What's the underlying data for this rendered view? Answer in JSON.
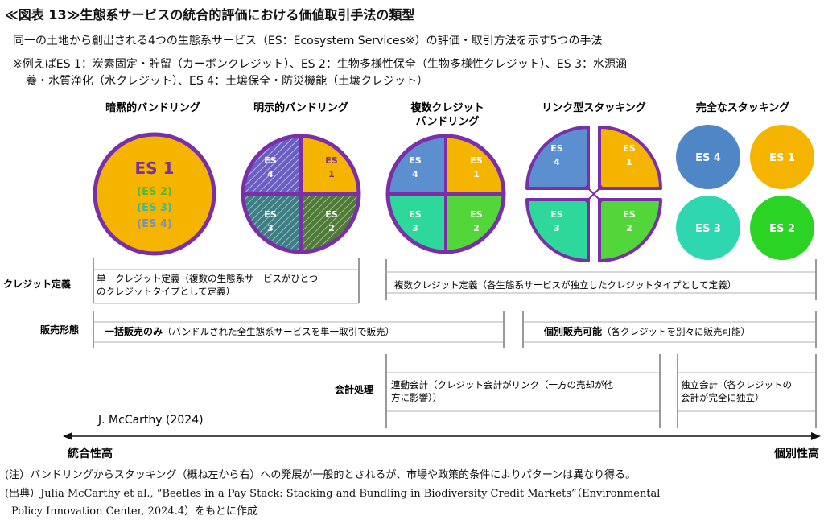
{
  "title": "≪図表 13≫生態系サービスの統合的評価における価値取引手法の類型",
  "subtitle": "同一の土地から創出される4つの生態系サービス（ES：Ecosystem Services※）の評価・取引方法を示す5つの手法",
  "example_line1": "※例えばES 1：炭素固定・貯留（カーボンクレジット）、ES 2：生物多様性保全（生物多様性クレジット）、ES 3：水源涵",
  "example_line2": "養・水質浄化（水クレジット）、ES 4：土壌保全・防災機能（土壌クレジット）",
  "methods": [
    {
      "label": "暗黙的バンドリング"
    },
    {
      "label": "明示的バンドリング"
    },
    {
      "label_line1": "複数クレジット",
      "label_line2": "バンドリング"
    },
    {
      "label": "リンク型スタッキング"
    },
    {
      "label": "完全なスタッキング"
    }
  ],
  "es": {
    "es1": "ES 1",
    "es2": "ES 2",
    "es3": "ES 3",
    "es4": "ES 4",
    "es2p": "(ES 2)",
    "es3p": "(ES 3)",
    "es4p": "(ES 4)",
    "es1_line1": "ES",
    "es1_line2": "1",
    "es2_line2": "2",
    "es3_line2": "3",
    "es4_line2": "4"
  },
  "colors": {
    "es1": "#f4b400",
    "es2": "#52d63a",
    "es3": "#2ed79a",
    "es4": "#5b8fd0",
    "outline": "#7a2fa8"
  },
  "rows": {
    "credit_def": "クレジット定義",
    "sales_form": "販売形態",
    "accounting": "会計処理"
  },
  "boxes": {
    "single_credit_l1": "単一クレジット定義（複数の生態系サービスがひとつ",
    "single_credit_l2": "のクレジットタイプとして定義）",
    "multi_credit": "複数クレジット定義（各生態系サービスが独立したクレジットタイプとして定義）",
    "lump_bold": "一括販売のみ",
    "lump_rest": "（バンドルされた全生態系サービスを単一取引で販売）",
    "separate_bold": "個別販売可能",
    "separate_rest": "（各クレジットを別々に販売可能）",
    "linked_l1": "連動会計（クレジット会計がリンク（一方の売却が他",
    "linked_l2": "方に影響））",
    "indep_l1": "独立会計（各クレジットの",
    "indep_l2": "会計が完全に独立）"
  },
  "author": "J. McCarthy (2024)",
  "axis": {
    "left": "統合性高",
    "right": "個別性高"
  },
  "notes": {
    "note": "(注）バンドリングからスタッキング（概ね左から右）への発展が一般的とされるが、市場や政策的条件によりパターンは異なり得る。",
    "source_l1": "(出典）Julia McCarthy et al., “Beetles in a Pay Stack: Stacking and Bundling in Biodiversity Credit Markets”（Environmental",
    "source_l2": "Policy Innovation Center, 2024.4）をもとに作成"
  }
}
